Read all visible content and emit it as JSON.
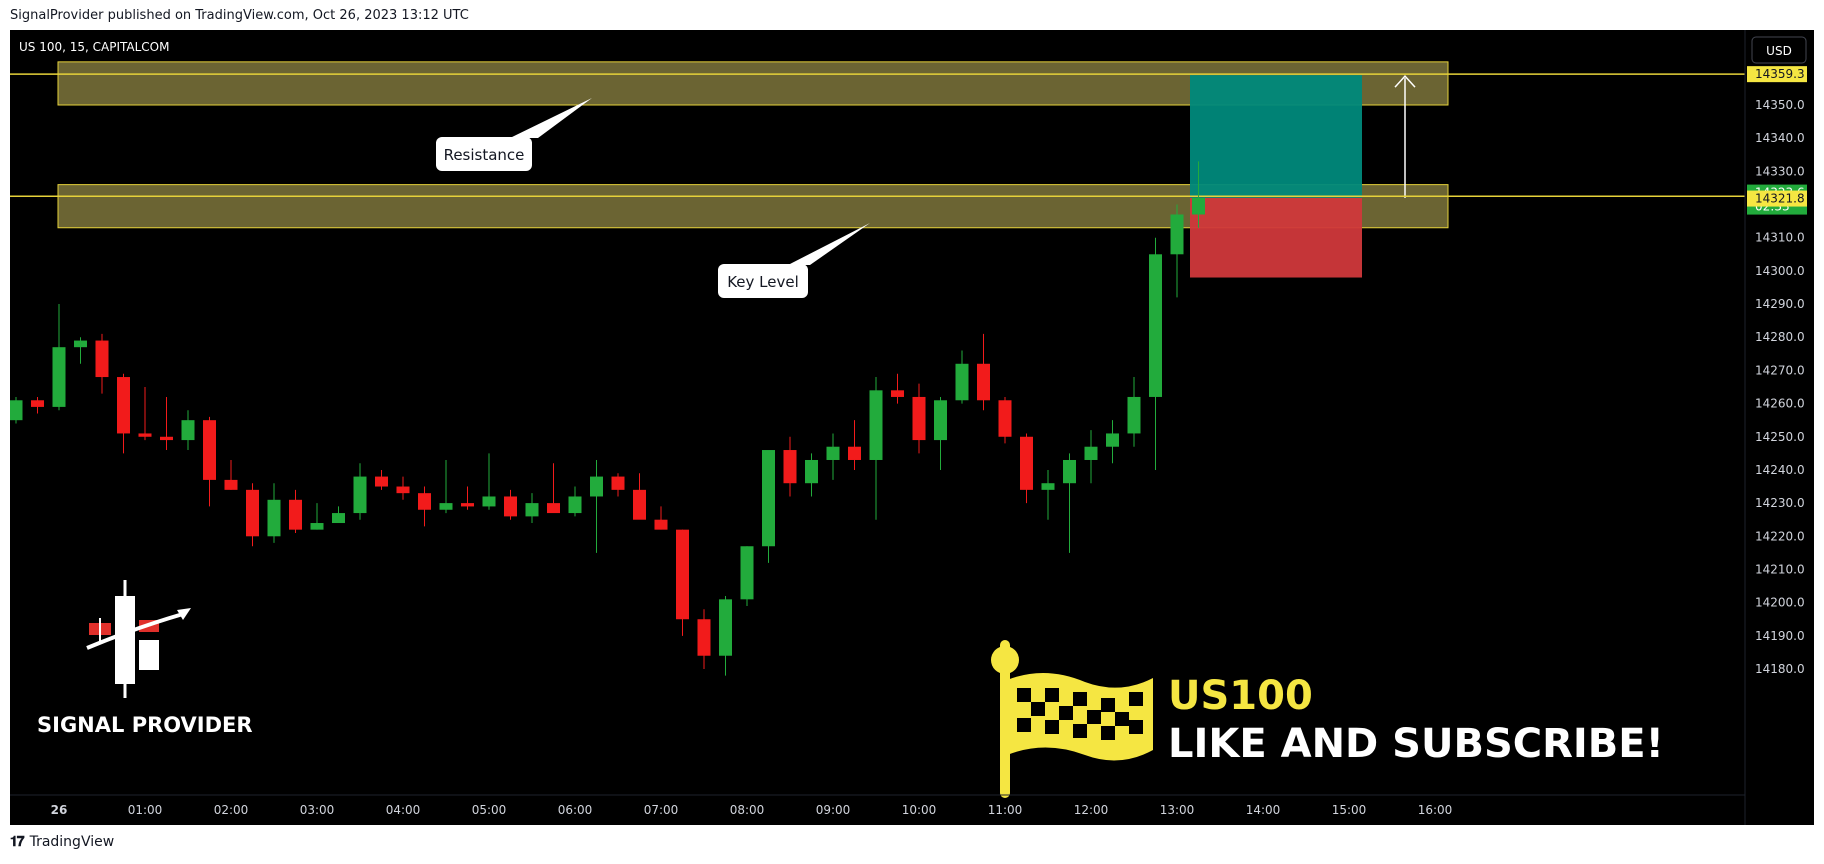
{
  "header": {
    "published": "SignalProvider published on TradingView.com, Oct 26, 2023 13:12 UTC"
  },
  "footer": {
    "brand": "TradingView"
  },
  "colors": {
    "bull": "#22ab3c",
    "bear": "#f21b1b",
    "zone_fill": "#6b6433",
    "zone_border": "#e6d23a",
    "target": "#00897b",
    "stop": "#d0383b",
    "label_yellow": "#f5e642"
  },
  "chart_data": {
    "type": "candlestick",
    "symbol_title": "US 100, 15, CAPITALCOM",
    "currency": "USD",
    "ylim": [
      14175,
      14365
    ],
    "y_ticks": [
      "14180.0",
      "14190.0",
      "14200.0",
      "14210.0",
      "14220.0",
      "14230.0",
      "14240.0",
      "14250.0",
      "14260.0",
      "14270.0",
      "14280.0",
      "14290.0",
      "14300.0",
      "14310.0",
      "14320.0",
      "14330.0",
      "14340.0",
      "14350.0"
    ],
    "x_labels": [
      {
        "label": "26",
        "bar": 2,
        "bold": true
      },
      {
        "label": "01:00",
        "bar": 6
      },
      {
        "label": "02:00",
        "bar": 10
      },
      {
        "label": "03:00",
        "bar": 14
      },
      {
        "label": "04:00",
        "bar": 18
      },
      {
        "label": "05:00",
        "bar": 22
      },
      {
        "label": "06:00",
        "bar": 26
      },
      {
        "label": "07:00",
        "bar": 30
      },
      {
        "label": "08:00",
        "bar": 34
      },
      {
        "label": "09:00",
        "bar": 38
      },
      {
        "label": "10:00",
        "bar": 42
      },
      {
        "label": "11:00",
        "bar": 46
      },
      {
        "label": "12:00",
        "bar": 50
      },
      {
        "label": "13:00",
        "bar": 54
      },
      {
        "label": "14:00",
        "bar": 58
      },
      {
        "label": "15:00",
        "bar": 62
      },
      {
        "label": "16:00",
        "bar": 66
      }
    ],
    "candles": [
      [
        14255,
        14262,
        14254,
        14261
      ],
      [
        14261,
        14262,
        14257,
        14259
      ],
      [
        14259,
        14290,
        14258,
        14277
      ],
      [
        14277,
        14280,
        14272,
        14279
      ],
      [
        14279,
        14281,
        14263,
        14268
      ],
      [
        14268,
        14269,
        14245,
        14251
      ],
      [
        14251,
        14265,
        14249,
        14250
      ],
      [
        14250,
        14262,
        14246,
        14249
      ],
      [
        14249,
        14258,
        14246,
        14255
      ],
      [
        14255,
        14256,
        14229,
        14237
      ],
      [
        14237,
        14243,
        14234,
        14234
      ],
      [
        14234,
        14236,
        14217,
        14220
      ],
      [
        14220,
        14236,
        14218,
        14231
      ],
      [
        14231,
        14234,
        14221,
        14222
      ],
      [
        14222,
        14230,
        14222,
        14224
      ],
      [
        14224,
        14229,
        14224,
        14227
      ],
      [
        14227,
        14242,
        14225,
        14238
      ],
      [
        14238,
        14240,
        14234,
        14235
      ],
      [
        14235,
        14238,
        14231,
        14233
      ],
      [
        14233,
        14235,
        14223,
        14228
      ],
      [
        14228,
        14243,
        14227,
        14230
      ],
      [
        14230,
        14235,
        14228,
        14229
      ],
      [
        14229,
        14245,
        14228,
        14232
      ],
      [
        14232,
        14234,
        14225,
        14226
      ],
      [
        14226,
        14233,
        14224,
        14230
      ],
      [
        14230,
        14242,
        14228,
        14227
      ],
      [
        14227,
        14235,
        14226,
        14232
      ],
      [
        14232,
        14243,
        14215,
        14238
      ],
      [
        14238,
        14239,
        14232,
        14234
      ],
      [
        14234,
        14239,
        14226,
        14225
      ],
      [
        14225,
        14229,
        14222,
        14222
      ],
      [
        14222,
        14222,
        14190,
        14195
      ],
      [
        14195,
        14198,
        14180,
        14184
      ],
      [
        14184,
        14202,
        14178,
        14201
      ],
      [
        14201,
        14217,
        14199,
        14217
      ],
      [
        14217,
        14245,
        14212,
        14246
      ],
      [
        14246,
        14250,
        14232,
        14236
      ],
      [
        14236,
        14245,
        14232,
        14243
      ],
      [
        14243,
        14251,
        14237,
        14247
      ],
      [
        14247,
        14255,
        14240,
        14243
      ],
      [
        14243,
        14268,
        14225,
        14264
      ],
      [
        14264,
        14269,
        14260,
        14262
      ],
      [
        14262,
        14266,
        14245,
        14249
      ],
      [
        14249,
        14262,
        14240,
        14261
      ],
      [
        14261,
        14276,
        14260,
        14272
      ],
      [
        14272,
        14281,
        14258,
        14261
      ],
      [
        14261,
        14262,
        14248,
        14250
      ],
      [
        14250,
        14251,
        14230,
        14234
      ],
      [
        14234,
        14240,
        14225,
        14236
      ],
      [
        14236,
        14245,
        14215,
        14243
      ],
      [
        14243,
        14252,
        14236,
        14247
      ],
      [
        14247,
        14255,
        14242,
        14251
      ],
      [
        14251,
        14268,
        14247,
        14262
      ],
      [
        14262,
        14310,
        14240,
        14305
      ],
      [
        14305,
        14320,
        14292,
        14317
      ],
      [
        14317,
        14333,
        14313,
        14322
      ]
    ],
    "zones": [
      {
        "name": "Resistance",
        "top": 14363,
        "bottom": 14350,
        "callout": "Resistance"
      },
      {
        "name": "Key Level",
        "top": 14326,
        "bottom": 14313,
        "callout": "Key Level"
      }
    ],
    "horizontal_lines": [
      14359.3,
      14322.5
    ],
    "position": {
      "entry": 14322,
      "target": 14359,
      "stop": 14298
    },
    "price_labels": [
      {
        "value": "14359.3",
        "price": 14359.3,
        "style": "yellow"
      },
      {
        "value": "14323.6",
        "sub": "02:33",
        "price": 14323.6,
        "style": "green"
      },
      {
        "value": "14321.8",
        "price": 14321.8,
        "style": "yellow"
      }
    ]
  },
  "overlay": {
    "logo_text": "SIGNAL PROVIDER",
    "headline": "US100",
    "subline": "LIKE AND SUBSCRIBE!"
  }
}
